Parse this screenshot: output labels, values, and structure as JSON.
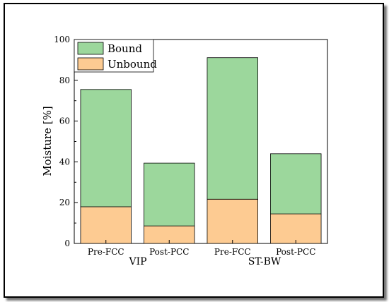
{
  "chart_data": {
    "type": "bar",
    "stacked": true,
    "categories": [
      "Pre-FCC",
      "Post-PCC",
      "Pre-FCC",
      "Post-PCC"
    ],
    "groups": [
      "VIP",
      "ST-BW"
    ],
    "series": [
      {
        "name": "Unbound",
        "values": [
          18.0,
          8.6,
          21.7,
          14.5
        ],
        "color": "#fdcb92"
      },
      {
        "name": "Bound",
        "values": [
          57.5,
          30.8,
          69.4,
          29.5
        ],
        "color": "#9cd79c"
      }
    ],
    "xlabel": "",
    "ylabel": "Moisture [%]",
    "ylim": [
      0,
      100
    ],
    "yticks": [
      0,
      20,
      40,
      60,
      80,
      100
    ],
    "grid": false,
    "legend": "top-left",
    "legend_order": [
      "Bound",
      "Unbound"
    ]
  }
}
